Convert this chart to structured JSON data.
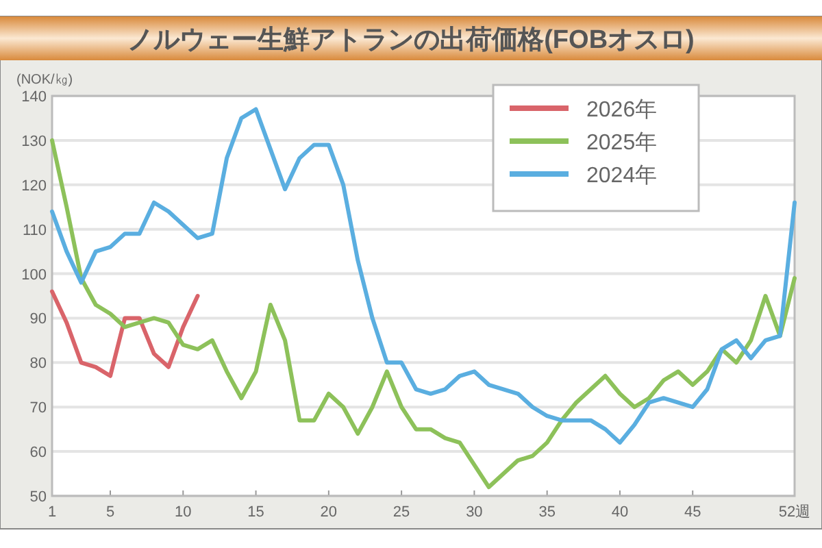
{
  "chart_data": {
    "type": "line",
    "title": "ノルウェー生鮮アトランの出荷価格(FOBオスロ)",
    "ylabel": "(NOK/㎏)",
    "x": [
      1,
      2,
      3,
      4,
      5,
      6,
      7,
      8,
      9,
      10,
      11,
      12,
      13,
      14,
      15,
      16,
      17,
      18,
      19,
      20,
      21,
      22,
      23,
      24,
      25,
      26,
      27,
      28,
      29,
      30,
      31,
      32,
      33,
      34,
      35,
      36,
      37,
      38,
      39,
      40,
      41,
      42,
      43,
      44,
      45,
      46,
      47,
      48,
      49,
      50,
      51,
      52
    ],
    "series": [
      {
        "name": "2026年",
        "color": "#d9646a",
        "values": [
          96,
          89,
          80,
          79,
          77,
          90,
          90,
          82,
          79,
          88,
          95,
          null,
          null,
          null,
          null,
          null,
          null,
          null,
          null,
          null,
          null,
          null,
          null,
          null,
          null,
          null,
          null,
          null,
          null,
          null,
          null,
          null,
          null,
          null,
          null,
          null,
          null,
          null,
          null,
          null,
          null,
          null,
          null,
          null,
          null,
          null,
          null,
          null,
          null,
          null,
          null,
          null
        ]
      },
      {
        "name": "2025年",
        "color": "#8dc15a",
        "values": [
          130,
          115,
          99,
          93,
          91,
          88,
          89,
          90,
          89,
          84,
          83,
          85,
          78,
          72,
          78,
          93,
          85,
          67,
          67,
          73,
          70,
          64,
          70,
          78,
          70,
          65,
          65,
          63,
          62,
          57,
          52,
          55,
          58,
          59,
          62,
          67,
          71,
          74,
          77,
          73,
          70,
          72,
          76,
          78,
          75,
          78,
          83,
          80,
          85,
          95,
          86,
          99
        ]
      },
      {
        "name": "2024年",
        "color": "#5aaee0",
        "values": [
          114,
          105,
          98,
          105,
          106,
          109,
          109,
          116,
          114,
          111,
          108,
          109,
          126,
          135,
          137,
          128,
          119,
          126,
          129,
          129,
          120,
          103,
          90,
          80,
          80,
          74,
          73,
          74,
          77,
          78,
          75,
          74,
          73,
          70,
          68,
          67,
          67,
          67,
          65,
          62,
          66,
          71,
          72,
          71,
          70,
          74,
          83,
          85,
          81,
          85,
          86,
          116
        ]
      }
    ],
    "xlim": [
      1,
      52
    ],
    "xticks": [
      1,
      5,
      10,
      15,
      20,
      25,
      30,
      35,
      40,
      45,
      {
        "value": 52,
        "label": "52週"
      }
    ],
    "ylim": [
      50,
      140
    ],
    "yticks": [
      50,
      60,
      70,
      80,
      90,
      100,
      110,
      120,
      130,
      140
    ],
    "grid": "y",
    "legend": "top right",
    "marker": "none",
    "line_style": "solid"
  }
}
